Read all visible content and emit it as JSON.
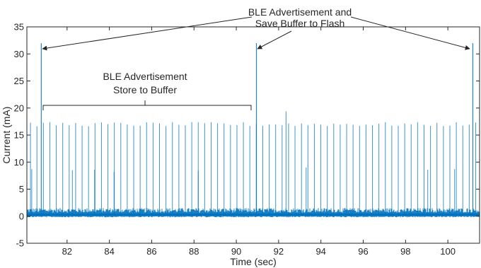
{
  "chart_data": {
    "type": "line",
    "xlabel": "Time (sec)",
    "ylabel": "Current (mA)",
    "xlim": [
      80.1,
      101.5
    ],
    "ylim": [
      -5,
      35
    ],
    "x_ticks": [
      82,
      84,
      86,
      88,
      90,
      92,
      94,
      96,
      98,
      100
    ],
    "y_ticks": [
      -5,
      0,
      5,
      10,
      15,
      20,
      25,
      30,
      35
    ],
    "grid": false,
    "baseline_current": 0.3,
    "noise_max": 1.5,
    "periodic_spike_interval": 0.305,
    "periodic_spike_first": 80.27,
    "periodic_spike_value": 17.0,
    "flash_spike_times": [
      80.78,
      90.95,
      101.18
    ],
    "flash_spike_value": 32.0,
    "mid_spikes": [
      {
        "x": 80.33,
        "y": 8.7
      },
      {
        "x": 82.25,
        "y": 8.5
      },
      {
        "x": 83.3,
        "y": 8.6
      },
      {
        "x": 84.22,
        "y": 8.2
      },
      {
        "x": 88.2,
        "y": 8.4
      },
      {
        "x": 92.35,
        "y": 19.4
      },
      {
        "x": 93.3,
        "y": 9.0
      },
      {
        "x": 99.05,
        "y": 8.6
      },
      {
        "x": 100.32,
        "y": 8.7
      }
    ],
    "colors": {
      "line": "#0072bd",
      "axis": "#262626",
      "annotation": "#262626"
    }
  },
  "annotations": {
    "flash": {
      "line1": "BLE Advertisement and",
      "line2": "Save Buffer to Flash"
    },
    "buffer": {
      "line1": "BLE Advertisement",
      "line2": "Store to Buffer"
    }
  }
}
